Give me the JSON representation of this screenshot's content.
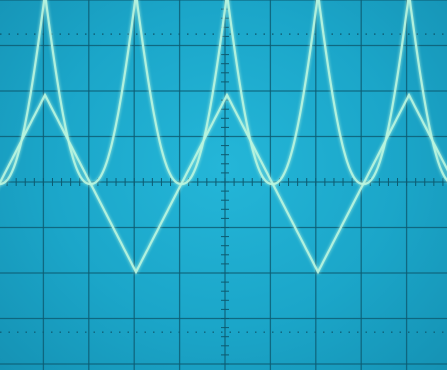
{
  "scope": {
    "graticule": {
      "divisions_x": 10,
      "divisions_y": 8,
      "minor_ticks_per_division": 5
    },
    "colors": {
      "screen": "#1ba6c9",
      "grid": "#0d5a70",
      "trace": "#b9f5df",
      "trace_glow": "#e6fff4"
    },
    "traces": [
      {
        "name": "",
        "shape": "triangle"
      },
      {
        "name": "",
        "shape": "rectified-sine"
      }
    ]
  }
}
